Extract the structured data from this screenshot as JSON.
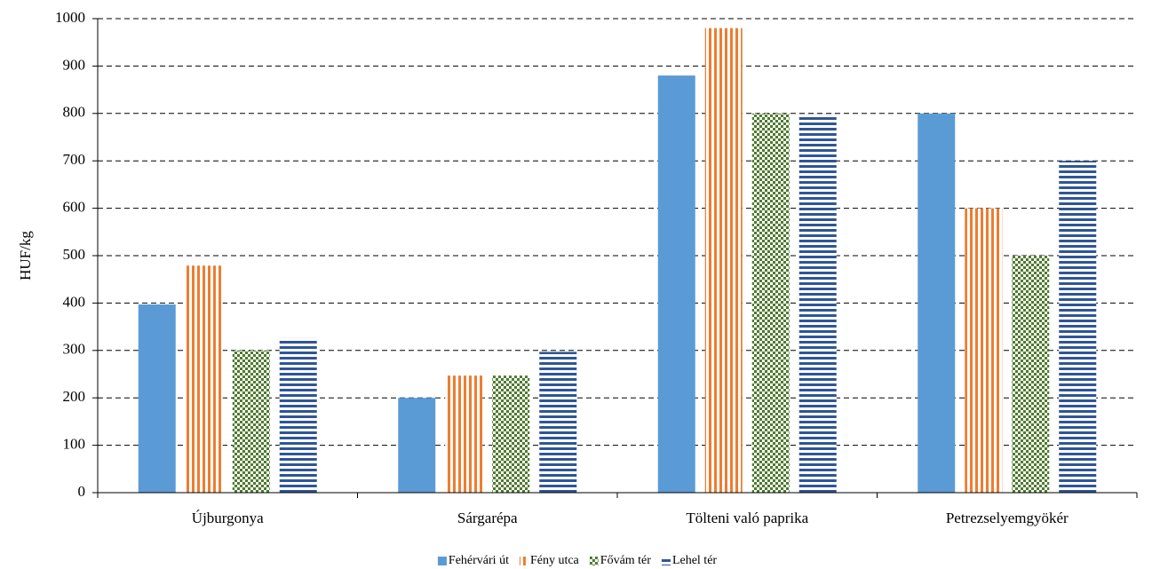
{
  "chart_data": {
    "type": "bar",
    "ylabel": "HUF/kg",
    "categories": [
      "Újburgonya",
      "Sárgarépa",
      "Tölteni való paprika",
      "Petrezselyemgyökér"
    ],
    "series": [
      {
        "name": "Fehérvári út",
        "color": "#5b9bd5",
        "pattern": "solid",
        "values": [
          397,
          200,
          880,
          800
        ]
      },
      {
        "name": "Fény utca",
        "color": "#ed7d31",
        "pattern": "vertical",
        "values": [
          479,
          247,
          980,
          600
        ]
      },
      {
        "name": "Fővám tér",
        "color": "#4e7a2e",
        "pattern": "checker",
        "values": [
          300,
          247,
          800,
          500
        ]
      },
      {
        "name": "Lehel tér",
        "color": "#2f5597",
        "pattern": "horizontal",
        "values": [
          326,
          297,
          798,
          700
        ]
      }
    ],
    "ylim": [
      0,
      1000
    ],
    "yticks": [
      0,
      100,
      200,
      300,
      400,
      500,
      600,
      700,
      800,
      900,
      1000
    ],
    "grid": true,
    "legend": "bottom"
  }
}
